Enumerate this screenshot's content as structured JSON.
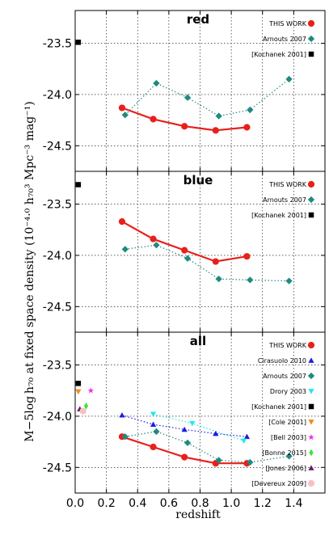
{
  "chart_data": {
    "type": "line",
    "xlabel": "redshift",
    "ylabel": "M−5log h70 at fixed space density (10^−4.0 h70^3 Mpc^−3 mag^−1)",
    "ylabel_display": "M−5log h₇₀ at fixed space density (10⁻⁴·⁰ h₇₀³ Mpc⁻³ mag⁻¹)",
    "xlim": [
      0,
      1.6
    ],
    "ylim": [
      -23.18,
      -24.75
    ],
    "x_ticks": [
      "0.0",
      "0.2",
      "0.4",
      "0.6",
      "0.8",
      "1.0",
      "1.2",
      "1.4"
    ],
    "y_ticks": [
      "-23.5",
      "-24.0",
      "-24.5"
    ],
    "grid": true,
    "legend_position": "top-right",
    "panels": [
      {
        "title": "red",
        "series": [
          {
            "name": "THIS WORK",
            "color": "#e8201c",
            "marker": "circle",
            "linestyle": "solid",
            "x": [
              0.3,
              0.5,
              0.7,
              0.9,
              1.1
            ],
            "y": [
              -24.13,
              -24.24,
              -24.31,
              -24.35,
              -24.32
            ]
          },
          {
            "name": "Arnouts 2007",
            "color": "#1f8a80",
            "marker": "diamond",
            "linestyle": "dotted",
            "x": [
              0.32,
              0.52,
              0.72,
              0.92,
              1.12,
              1.37
            ],
            "y": [
              -24.2,
              -23.89,
              -24.03,
              -24.21,
              -24.15,
              -23.85
            ]
          },
          {
            "name": "[Kochanek 2001]",
            "color": "#000000",
            "marker": "square",
            "linestyle": "none",
            "x": [
              0.02
            ],
            "y": [
              -23.49
            ]
          }
        ]
      },
      {
        "title": "blue",
        "series": [
          {
            "name": "THIS WORK",
            "color": "#e8201c",
            "marker": "circle",
            "linestyle": "solid",
            "x": [
              0.3,
              0.5,
              0.7,
              0.9,
              1.1
            ],
            "y": [
              -23.67,
              -23.84,
              -23.95,
              -24.06,
              -24.01
            ]
          },
          {
            "name": "Arnouts 2007",
            "color": "#1f8a80",
            "marker": "diamond",
            "linestyle": "dotted",
            "x": [
              0.32,
              0.52,
              0.72,
              0.92,
              1.12,
              1.37
            ],
            "y": [
              -23.94,
              -23.9,
              -24.03,
              -24.23,
              -24.24,
              -24.25
            ]
          },
          {
            "name": "[Kochanek 2001]",
            "color": "#000000",
            "marker": "square",
            "linestyle": "none",
            "x": [
              0.02
            ],
            "y": [
              -23.31
            ]
          }
        ]
      },
      {
        "title": "all",
        "series": [
          {
            "name": "THIS WORK",
            "color": "#e8201c",
            "marker": "circle",
            "linestyle": "solid",
            "x": [
              0.3,
              0.5,
              0.7,
              0.9,
              1.1
            ],
            "y": [
              -24.2,
              -24.3,
              -24.4,
              -24.46,
              -24.46
            ]
          },
          {
            "name": "Cirasuolo 2010",
            "color": "#1c1ce0",
            "marker": "triangle-up",
            "linestyle": "dotted",
            "x": [
              0.3,
              0.5,
              0.7,
              0.9,
              1.1
            ],
            "y": [
              -23.99,
              -24.08,
              -24.13,
              -24.17,
              -24.2
            ]
          },
          {
            "name": "Arnouts 2007",
            "color": "#1f8a80",
            "marker": "diamond",
            "linestyle": "dotted",
            "x": [
              0.32,
              0.52,
              0.72,
              0.92,
              1.12,
              1.37
            ],
            "y": [
              -24.2,
              -24.15,
              -24.26,
              -24.43,
              -24.45,
              -24.39
            ]
          },
          {
            "name": "Drory 2003",
            "color": "#22e8e8",
            "marker": "triangle-down",
            "linestyle": "dotted",
            "x": [
              0.5,
              0.75,
              1.08
            ],
            "y": [
              -23.98,
              -24.07,
              -24.24
            ]
          },
          {
            "name": "[Kochanek 2001]",
            "color": "#000000",
            "marker": "square",
            "linestyle": "none",
            "x": [
              0.02
            ],
            "y": [
              -23.68
            ]
          },
          {
            "name": "[Cole 2001]",
            "color": "#f08c1c",
            "marker": "triangle-down",
            "linestyle": "none",
            "x": [
              0.02
            ],
            "y": [
              -23.76
            ]
          },
          {
            "name": "[Bell 2003]",
            "color": "#f030e8",
            "marker": "star",
            "linestyle": "none",
            "x": [
              0.1
            ],
            "y": [
              -23.75
            ]
          },
          {
            "name": "[Bonne 2015]",
            "color": "#30e830",
            "marker": "thin-diamond",
            "linestyle": "none",
            "x": [
              0.07
            ],
            "y": [
              -23.9
            ]
          },
          {
            "name": "[Jones 2006]",
            "color": "#6a1a6a",
            "marker": "triangle-up",
            "linestyle": "none",
            "x": [
              0.03
            ],
            "y": [
              -23.93
            ]
          },
          {
            "name": "[Devereux 2009]",
            "color": "#f8c0c4",
            "marker": "circle",
            "linestyle": "none",
            "x": [
              0.05
            ],
            "y": [
              -23.95
            ]
          }
        ]
      }
    ]
  }
}
